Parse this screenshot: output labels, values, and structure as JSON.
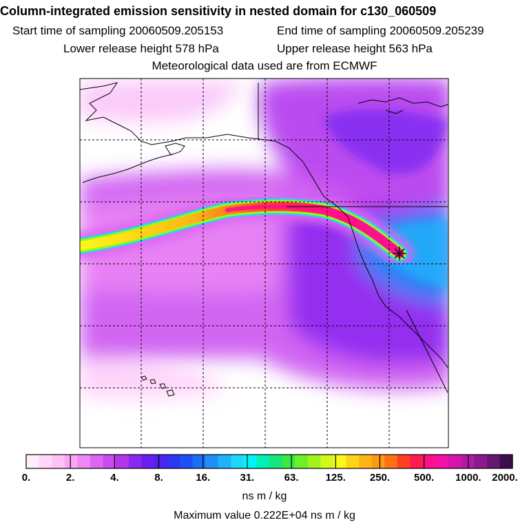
{
  "header": {
    "title": "Column-integrated emission sensitivity in nested domain for c130_060509",
    "start_label": "Start time of sampling 20060509.205153",
    "end_label": "End time of sampling 20060509.205239",
    "lower_label": "Lower release height  578 hPa",
    "upper_label": "Upper release height  563 hPa",
    "met_label": "Meteorological data used are from ECMWF"
  },
  "colors": {
    "background": "#ffffff",
    "grid": "#000000",
    "plume_core": "#e8006e",
    "receptor": "#000000"
  },
  "colorbar": {
    "labels": [
      "0.",
      "2.",
      "4.",
      "8.",
      "16.",
      "31.",
      "63.",
      "125.",
      "250.",
      "500.",
      "1000.",
      "2000."
    ],
    "colors": [
      "#ffeefc",
      "#ffd8fa",
      "#ffc2f8",
      "#f9a6f7",
      "#ee88f5",
      "#dc66f2",
      "#c94bf0",
      "#b236ee",
      "#8a28f0",
      "#6a1ff2",
      "#4f23f0",
      "#2b38f0",
      "#1c4ff4",
      "#1c6ef6",
      "#1f8ff8",
      "#1fb2fa",
      "#1ed5fb",
      "#00f7f7",
      "#00f0b5",
      "#18e67c",
      "#3be846",
      "#6cf028",
      "#a0f41b",
      "#d2f81c",
      "#fdfa1a",
      "#ffd416",
      "#ffb515",
      "#ff9813",
      "#ff7212",
      "#ff3e26",
      "#ff1a50",
      "#ff0f88",
      "#f210a5",
      "#d414aa",
      "#b21aa6",
      "#8c1a8e",
      "#631870",
      "#3d0f4a"
    ],
    "units": "ns m / kg",
    "max_value": "Maximum value  0.222E+04 ns m / kg"
  },
  "map": {
    "receptor_icon": "asterisk-icon",
    "coastline_icon": "coastline-lines"
  }
}
